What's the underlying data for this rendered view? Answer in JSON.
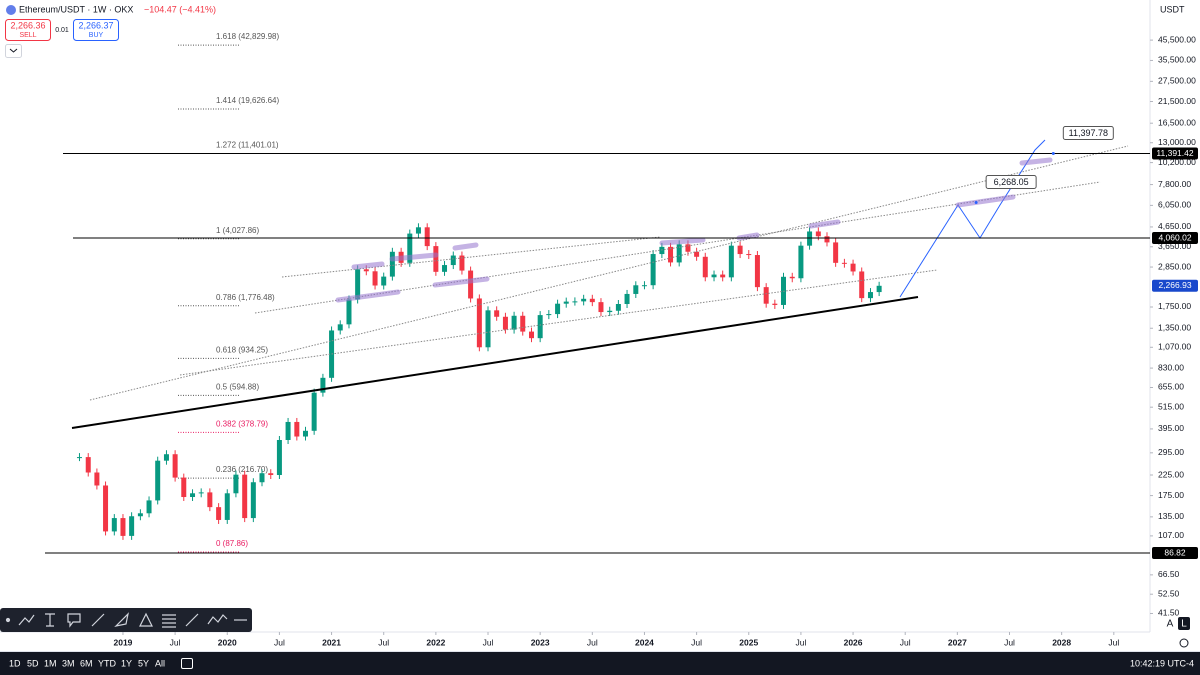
{
  "chart_data": {
    "type": "candlestick",
    "symbol_title": "Ethereum/USDT · 1W · OKX",
    "change_label": "−104.47 (−4.41%)",
    "sell": {
      "price": "2,266.36",
      "label": "SELL"
    },
    "spread": "0.01",
    "buy": {
      "price": "2,266.37",
      "label": "BUY"
    },
    "currency": "USDT",
    "log_scale": true,
    "up_color": "#089981",
    "down_color": "#f23645",
    "x": [
      2018.583,
      2018.667,
      2018.75,
      2018.833,
      2018.917,
      2019,
      2019.083,
      2019.167,
      2019.25,
      2019.333,
      2019.417,
      2019.5,
      2019.583,
      2019.667,
      2019.75,
      2019.833,
      2019.917,
      2020,
      2020.083,
      2020.167,
      2020.25,
      2020.333,
      2020.417,
      2020.5,
      2020.583,
      2020.667,
      2020.75,
      2020.833,
      2020.917,
      2021,
      2021.083,
      2021.167,
      2021.25,
      2021.333,
      2021.417,
      2021.5,
      2021.583,
      2021.667,
      2021.75,
      2021.833,
      2021.917,
      2022,
      2022.083,
      2022.167,
      2022.25,
      2022.333,
      2022.417,
      2022.5,
      2022.583,
      2022.667,
      2022.75,
      2022.833,
      2022.917,
      2023,
      2023.083,
      2023.167,
      2023.25,
      2023.333,
      2023.417,
      2023.5,
      2023.583,
      2023.667,
      2023.75,
      2023.833,
      2023.917,
      2024,
      2024.083,
      2024.167,
      2024.25,
      2024.333,
      2024.417,
      2024.5,
      2024.583,
      2024.667,
      2024.75,
      2024.833,
      2024.917,
      2025,
      2025.083,
      2025.167,
      2025.25,
      2025.333,
      2025.417,
      2025.5,
      2025.583,
      2025.667,
      2025.75,
      2025.833,
      2025.917,
      2026,
      2026.083,
      2026.167,
      2026.25
    ],
    "values": [
      280,
      232,
      198,
      113,
      133,
      107,
      136,
      141,
      165,
      268,
      290,
      218,
      172,
      180,
      182,
      152,
      130,
      180,
      226,
      133,
      206,
      230,
      225,
      345,
      430,
      360,
      386,
      615,
      737,
      1314,
      1416,
      1918,
      2773,
      2706,
      2275,
      2536,
      3433,
      3000,
      4288,
      4630,
      3680,
      2688,
      2920,
      3280,
      2730,
      1942,
      1070,
      1680,
      1553,
      1328,
      1572,
      1296,
      1196,
      1585,
      1605,
      1822,
      1869,
      1874,
      1934,
      1857,
      1645,
      1671,
      1815,
      2052,
      2281,
      2283,
      3340,
      3646,
      3015,
      3760,
      3435,
      3230,
      2515,
      2600,
      2513,
      3700,
      3340,
      3300,
      2230,
      1822,
      1794,
      2530,
      2485,
      3700,
      4400,
      4150,
      3850,
      3000,
      2970,
      2700,
      1950,
      2100,
      2266.93
    ],
    "xlim": [
      2017.821,
      2028.847
    ],
    "xticks": [
      2019,
      {
        "value": 2019.5,
        "label": "Jul"
      },
      2020,
      {
        "value": 2020.5,
        "label": "Jul"
      },
      2021,
      {
        "value": 2021.5,
        "label": "Jul"
      },
      2022,
      {
        "value": 2022.5,
        "label": "Jul"
      },
      2023,
      {
        "value": 2023.5,
        "label": "Jul"
      },
      2024,
      {
        "value": 2024.5,
        "label": "Jul"
      },
      2025,
      {
        "value": 2025.5,
        "label": "Jul"
      },
      2026,
      {
        "value": 2026.5,
        "label": "Jul"
      },
      2027,
      {
        "value": 2027.5,
        "label": "Jul"
      },
      2028,
      {
        "value": 2028.5,
        "label": "Jul"
      }
    ],
    "ylim": [
      33.1,
      74250
    ],
    "yticks": [
      {
        "value": 45500,
        "label": "45,500.00"
      },
      {
        "value": 35500,
        "label": "35,500.00"
      },
      {
        "value": 27500,
        "label": "27,500.00"
      },
      {
        "value": 21500,
        "label": "21,500.00"
      },
      {
        "value": 16500,
        "label": "16,500.00"
      },
      {
        "value": 13000,
        "label": "13,000.00"
      },
      {
        "value": 10200,
        "label": "10,200.00"
      },
      {
        "value": 7800,
        "label": "7,800.00"
      },
      {
        "value": 6050,
        "label": "6,050.00"
      },
      {
        "value": 4650,
        "label": "4,650.00"
      },
      {
        "value": 3650,
        "label": "3,650.00"
      },
      {
        "value": 2850,
        "label": "2,850.00"
      },
      {
        "value": 1750,
        "label": "1,750.00"
      },
      {
        "value": 1350,
        "label": "1,350.00"
      },
      {
        "value": 1070,
        "label": "1,070.00"
      },
      {
        "value": 830,
        "label": "830.00"
      },
      {
        "value": 655,
        "label": "655.00"
      },
      {
        "value": 515,
        "label": "515.00"
      },
      {
        "value": 395,
        "label": "395.00"
      },
      {
        "value": 295,
        "label": "295.00"
      },
      {
        "value": 225,
        "label": "225.00"
      },
      {
        "value": 175,
        "label": "175.00"
      },
      {
        "value": 135,
        "label": "135.00"
      },
      {
        "value": 107,
        "label": "107.00"
      },
      {
        "value": 66.5,
        "label": "66.50"
      },
      {
        "value": 52.5,
        "label": "52.50"
      },
      {
        "value": 41.5,
        "label": "41.50"
      }
    ],
    "price_lines": [
      {
        "value": 11391.42,
        "label": "11,391.42",
        "color": "#000000"
      },
      {
        "value": 4060.02,
        "label": "4,060.02",
        "color": "#000000"
      },
      {
        "value": 2266.93,
        "label": "2,266.93",
        "color": "#1848cc"
      },
      {
        "value": 86.82,
        "label": "86.82",
        "color": "#000000"
      }
    ],
    "fib_levels": [
      {
        "value": 42829.98,
        "label": "1.618 (42,829.98)",
        "color": "#555555"
      },
      {
        "value": 19626.64,
        "label": "1.414 (19,626.64)",
        "color": "#555555"
      },
      {
        "value": 11401.01,
        "label": "1.272 (11,401.01)",
        "color": "#555555"
      },
      {
        "value": 4027.86,
        "label": "1 (4,027.86)",
        "color": "#555555"
      },
      {
        "value": 1776.48,
        "label": "0.786 (1,776.48)",
        "color": "#555555"
      },
      {
        "value": 934.25,
        "label": "0.618 (934.25)",
        "color": "#555555"
      },
      {
        "value": 594.88,
        "label": "0.5 (594.88)",
        "color": "#555555"
      },
      {
        "value": 378.79,
        "label": "0.382 (378.79)",
        "color": "#e91e63"
      },
      {
        "value": 216.7,
        "label": "0.236 (216.70)",
        "color": "#555555"
      },
      {
        "value": 87.86,
        "label": "0 (87.86)",
        "color": "#e91e63"
      }
    ],
    "targets": [
      {
        "x": 2027.18,
        "value": 6268.05,
        "label": "6,268.05"
      },
      {
        "x": 2027.92,
        "value": 11397.78,
        "label": "11,397.78"
      }
    ]
  },
  "timeframes": [
    "1D",
    "5D",
    "1M",
    "3M",
    "6M",
    "YTD",
    "1Y",
    "5Y",
    "All"
  ],
  "clock": "10:42:19 UTC-4",
  "scale_buttons": [
    "A",
    "L"
  ]
}
